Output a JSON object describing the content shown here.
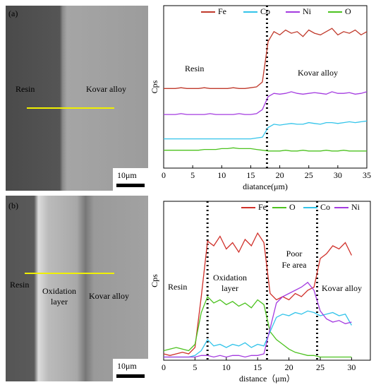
{
  "images": [
    {
      "panel": "(a)",
      "labels": [
        "Resin",
        "Kovar alloy"
      ],
      "scale": "10μm"
    },
    {
      "panel": "(b)",
      "labels": [
        "Resin",
        "Oxidation",
        "layer",
        "Kovar alloy"
      ],
      "scale": "10μm"
    }
  ],
  "chart_data": [
    {
      "type": "line",
      "ylabel": "Cps",
      "xlabel": "diatance(μm)",
      "annotations": [
        "Resin",
        "Kovar alloy"
      ],
      "vlines": [
        17.8
      ],
      "xlim": [
        0,
        35
      ],
      "ylim": [
        0,
        100
      ],
      "xticks": [
        0,
        5,
        10,
        15,
        20,
        25,
        30,
        35
      ],
      "x": [
        0,
        1,
        2,
        3,
        4,
        5,
        6,
        7,
        8,
        9,
        10,
        11,
        12,
        13,
        14,
        15,
        16,
        17,
        18,
        19,
        20,
        21,
        22,
        23,
        24,
        25,
        26,
        27,
        28,
        29,
        30,
        31,
        32,
        33,
        34,
        35
      ],
      "series": [
        {
          "name": "Fe",
          "color": "#c0392b",
          "values": [
            49,
            49,
            49,
            49.5,
            49,
            49,
            49,
            49.5,
            49,
            49,
            49,
            49,
            49.5,
            49,
            49,
            49.5,
            50,
            53,
            78,
            84,
            82,
            85,
            83,
            84,
            81,
            85,
            83,
            82,
            84,
            86,
            82,
            84,
            83,
            85,
            82,
            84
          ]
        },
        {
          "name": "Co",
          "color": "#33c4ea",
          "values": [
            18,
            18,
            18,
            18,
            18,
            18,
            18,
            18,
            18,
            18,
            18,
            18,
            18,
            18,
            18,
            18,
            18.5,
            19,
            25,
            27,
            26.5,
            27,
            27.5,
            27,
            27,
            28,
            27.5,
            27,
            28,
            28,
            27.5,
            28,
            28.5,
            28,
            28.5,
            29
          ]
        },
        {
          "name": "Ni",
          "color": "#a43be0",
          "values": [
            33,
            33,
            33,
            33.5,
            33,
            33,
            33,
            33,
            33.5,
            33,
            33,
            33,
            33,
            33.5,
            33,
            33,
            33.5,
            36,
            44,
            46,
            45.5,
            46,
            47,
            46,
            45.5,
            46,
            46.5,
            46,
            45.5,
            47,
            46,
            46,
            46.5,
            45.5,
            46,
            47
          ]
        },
        {
          "name": "O",
          "color": "#4cc21f",
          "values": [
            11,
            11,
            11,
            11,
            11,
            11,
            11,
            11.5,
            11.5,
            11.5,
            12,
            12,
            12.5,
            12,
            12,
            12,
            11.5,
            11,
            10.5,
            10.5,
            10.5,
            11,
            10.5,
            10.5,
            11,
            10.5,
            10.5,
            10.5,
            11,
            10.5,
            10.5,
            11,
            10.5,
            10.5,
            10.5,
            10.5
          ]
        }
      ]
    },
    {
      "type": "line",
      "ylabel": "Cps",
      "xlabel": "distance（μm）",
      "annotations": [
        "Resin",
        "Oxidation",
        "layer",
        "Poor",
        "Fe area",
        "Kovar alloy"
      ],
      "vlines": [
        7,
        16.5,
        24.5
      ],
      "xlim": [
        0,
        33
      ],
      "ylim": [
        0,
        100
      ],
      "xticks": [
        0,
        5,
        10,
        15,
        20,
        25,
        30
      ],
      "x": [
        0,
        1,
        2,
        3,
        4,
        5,
        6,
        7,
        8,
        9,
        10,
        11,
        12,
        13,
        14,
        15,
        16,
        17,
        18,
        19,
        20,
        21,
        22,
        23,
        24,
        25,
        26,
        27,
        28,
        29,
        30
      ],
      "series": [
        {
          "name": "Fe",
          "color": "#d0302a",
          "values": [
            4,
            3,
            4,
            5,
            4,
            8,
            40,
            75,
            72,
            78,
            70,
            74,
            68,
            76,
            72,
            80,
            74,
            42,
            38,
            40,
            38,
            42,
            40,
            44,
            46,
            64,
            67,
            72,
            70,
            74,
            66
          ]
        },
        {
          "name": "O",
          "color": "#4cc21f",
          "values": [
            6,
            7,
            8,
            7,
            6,
            10,
            30,
            40,
            36,
            38,
            35,
            37,
            34,
            36,
            33,
            38,
            35,
            18,
            13,
            10,
            7,
            5,
            4,
            3,
            3,
            2,
            2,
            2,
            2,
            2,
            2
          ]
        },
        {
          "name": "Co",
          "color": "#33c4ea",
          "values": [
            2,
            2,
            2,
            2,
            2,
            3,
            6,
            13,
            9,
            10,
            8,
            10,
            9,
            11,
            8,
            10,
            9,
            18,
            27,
            29,
            28,
            30,
            29,
            31,
            30,
            28,
            29,
            30,
            28,
            29,
            22
          ]
        },
        {
          "name": "Ni",
          "color": "#a43be0",
          "values": [
            2,
            2,
            2,
            2,
            2,
            2,
            3,
            3,
            2,
            3,
            2,
            3,
            3,
            2,
            3,
            3,
            4,
            20,
            36,
            40,
            42,
            44,
            46,
            49,
            44,
            31,
            26,
            24,
            25,
            23,
            24
          ]
        }
      ]
    }
  ]
}
